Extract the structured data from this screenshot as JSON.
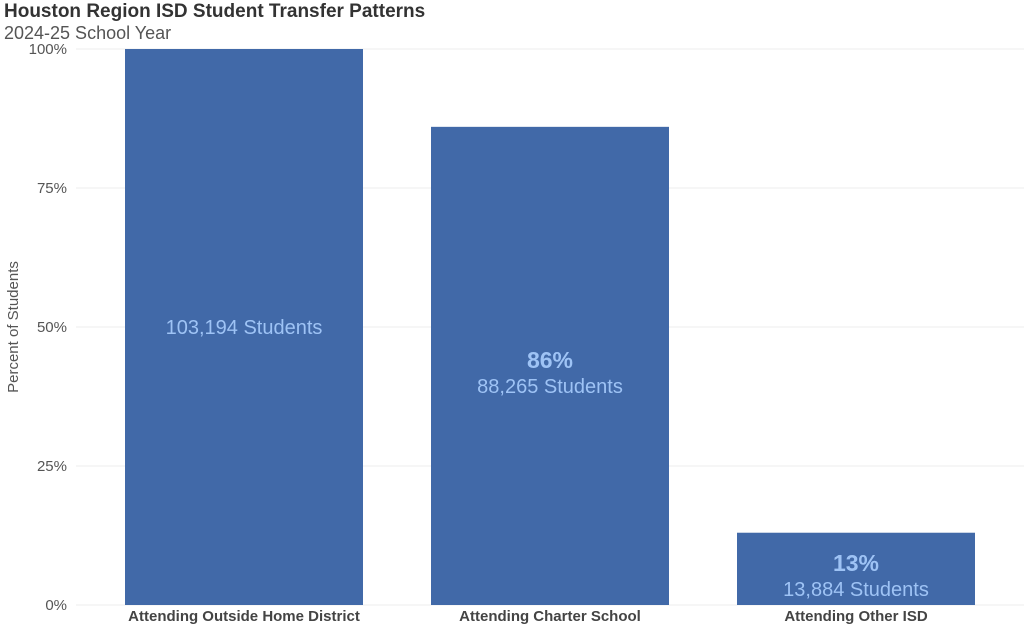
{
  "chart_data": {
    "type": "bar",
    "title": "Houston Region ISD Student Transfer Patterns",
    "subtitle": "2024-25 School Year",
    "ylabel": "Percent of Students",
    "ylim": [
      0,
      100
    ],
    "yticks": [
      "0%",
      "25%",
      "50%",
      "75%",
      "100%"
    ],
    "ytick_values": [
      0,
      25,
      50,
      75,
      100
    ],
    "grid": true,
    "categories": [
      "Attending Outside Home District",
      "Attending Charter School",
      "Attending Other ISD"
    ],
    "values": [
      100,
      86,
      13
    ],
    "value_labels": [
      "",
      "86%",
      "13%"
    ],
    "student_labels": [
      "103,194 Students",
      "88,265 Students",
      "13,884 Students"
    ],
    "colors": {
      "bar": "#4169a8",
      "label": "#9ec3f5",
      "grid": "#eeeeee"
    }
  }
}
